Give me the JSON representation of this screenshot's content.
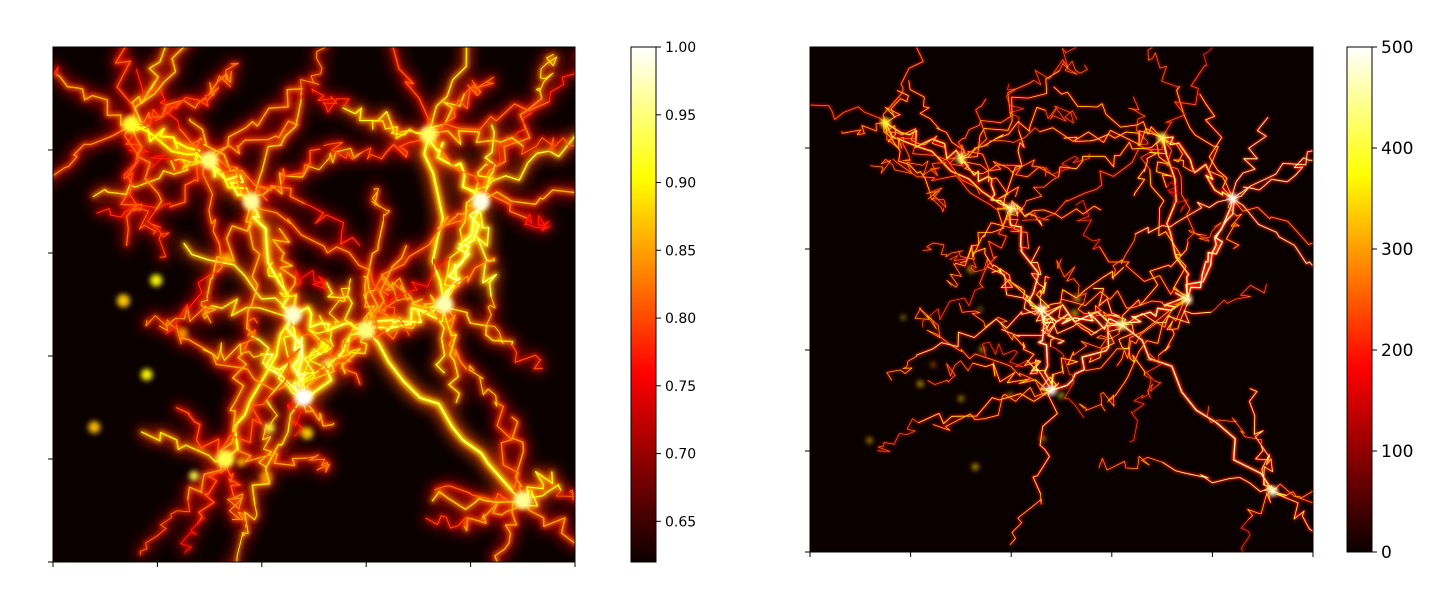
{
  "chart_data": [
    {
      "type": "heatmap",
      "title": "",
      "xlabel": "",
      "ylabel": "",
      "colormap": "hot",
      "colorbar": {
        "range": [
          0.62,
          1.0
        ],
        "ticks": [
          1.0,
          0.95,
          0.9,
          0.85,
          0.8,
          0.75,
          0.7,
          0.65
        ],
        "tick_labels": [
          "1.00",
          "0.95",
          "0.90",
          "0.85",
          "0.80",
          "0.75",
          "0.70",
          "0.65"
        ]
      },
      "grid": false,
      "content": "branching filament network on dark background",
      "hubs": [
        {
          "x": 0.48,
          "y": 0.68,
          "v": 1.0
        },
        {
          "x": 0.46,
          "y": 0.52,
          "v": 0.98
        },
        {
          "x": 0.82,
          "y": 0.3,
          "v": 0.99
        },
        {
          "x": 0.75,
          "y": 0.5,
          "v": 0.97
        },
        {
          "x": 0.38,
          "y": 0.3,
          "v": 0.96
        },
        {
          "x": 0.3,
          "y": 0.22,
          "v": 0.95
        },
        {
          "x": 0.15,
          "y": 0.15,
          "v": 0.92
        },
        {
          "x": 0.9,
          "y": 0.88,
          "v": 0.96
        },
        {
          "x": 0.6,
          "y": 0.55,
          "v": 0.95
        },
        {
          "x": 0.72,
          "y": 0.17,
          "v": 0.94
        },
        {
          "x": 0.33,
          "y": 0.8,
          "v": 0.93
        }
      ]
    },
    {
      "type": "heatmap",
      "title": "",
      "xlabel": "",
      "ylabel": "",
      "colormap": "hot",
      "colorbar": {
        "range": [
          0,
          500
        ],
        "ticks": [
          500,
          400,
          300,
          200,
          100,
          0
        ],
        "tick_labels": [
          "500",
          "400",
          "300",
          "200",
          "100",
          "0"
        ]
      },
      "grid": false,
      "content": "thin branching filament network on dark background",
      "hubs": [
        {
          "x": 0.48,
          "y": 0.68,
          "v": 500
        },
        {
          "x": 0.46,
          "y": 0.52,
          "v": 480
        },
        {
          "x": 0.84,
          "y": 0.3,
          "v": 500
        },
        {
          "x": 0.75,
          "y": 0.5,
          "v": 470
        },
        {
          "x": 0.4,
          "y": 0.32,
          "v": 450
        },
        {
          "x": 0.3,
          "y": 0.22,
          "v": 430
        },
        {
          "x": 0.15,
          "y": 0.15,
          "v": 400
        },
        {
          "x": 0.92,
          "y": 0.88,
          "v": 480
        },
        {
          "x": 0.62,
          "y": 0.55,
          "v": 460
        },
        {
          "x": 0.7,
          "y": 0.18,
          "v": 420
        }
      ]
    }
  ]
}
